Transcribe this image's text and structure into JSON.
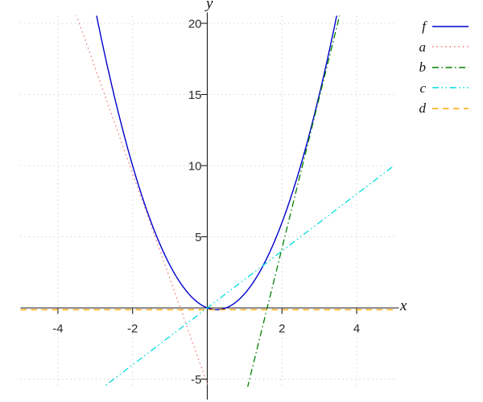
{
  "chart_data": {
    "type": "line",
    "title": "",
    "xlabel": "x",
    "ylabel": "y",
    "xlim": [
      -5,
      5
    ],
    "ylim": [
      -5.5,
      20.5
    ],
    "xticks": [
      -4,
      -2,
      2,
      4
    ],
    "xtick_labels": [
      "-4",
      "-2",
      "2",
      "4"
    ],
    "yticks": [
      -5,
      5,
      10,
      15,
      20
    ],
    "ytick_labels": [
      "-5",
      "5",
      "10",
      "15",
      "20"
    ],
    "grid": "dotted",
    "grid_color": "#c2c2c2",
    "axis_color": "#1b1b1b",
    "tick_label_color": "#2b2b2b",
    "legend_position": "outside-top-right",
    "series": [
      {
        "label": "f",
        "color": "#0000cc",
        "style": "solid",
        "type": "quadratic",
        "equation": "f(x) = 2x^2 - x",
        "coeffs": {
          "a": 2,
          "b": -1,
          "c": 0
        },
        "domain": [
          -3.2,
          3.7
        ]
      },
      {
        "label": "a",
        "color": "#f07878",
        "style": "dotted",
        "type": "linear",
        "equation": "y = -7.4x - 5.35",
        "coeffs": {
          "m": -7.4,
          "b": -5.35
        },
        "domain": [
          -3.7,
          0.2
        ]
      },
      {
        "label": "b",
        "color": "#008000",
        "style": "dashdot",
        "type": "linear",
        "equation": "y = 10.6x - 17",
        "coeffs": {
          "m": 10.6,
          "b": -17
        },
        "domain": [
          0.9,
          3.8
        ]
      },
      {
        "label": "c",
        "color": "#00dede",
        "style": "dashdotdot",
        "type": "linear",
        "equation": "y = 2x",
        "coeffs": {
          "m": 2,
          "b": 0
        },
        "domain": [
          -3,
          5
        ]
      },
      {
        "label": "d",
        "color": "#ffa500",
        "style": "dashed",
        "type": "linear",
        "equation": "y = -0.125",
        "coeffs": {
          "m": 0,
          "b": -0.125
        },
        "domain": [
          -5,
          5
        ]
      }
    ]
  }
}
